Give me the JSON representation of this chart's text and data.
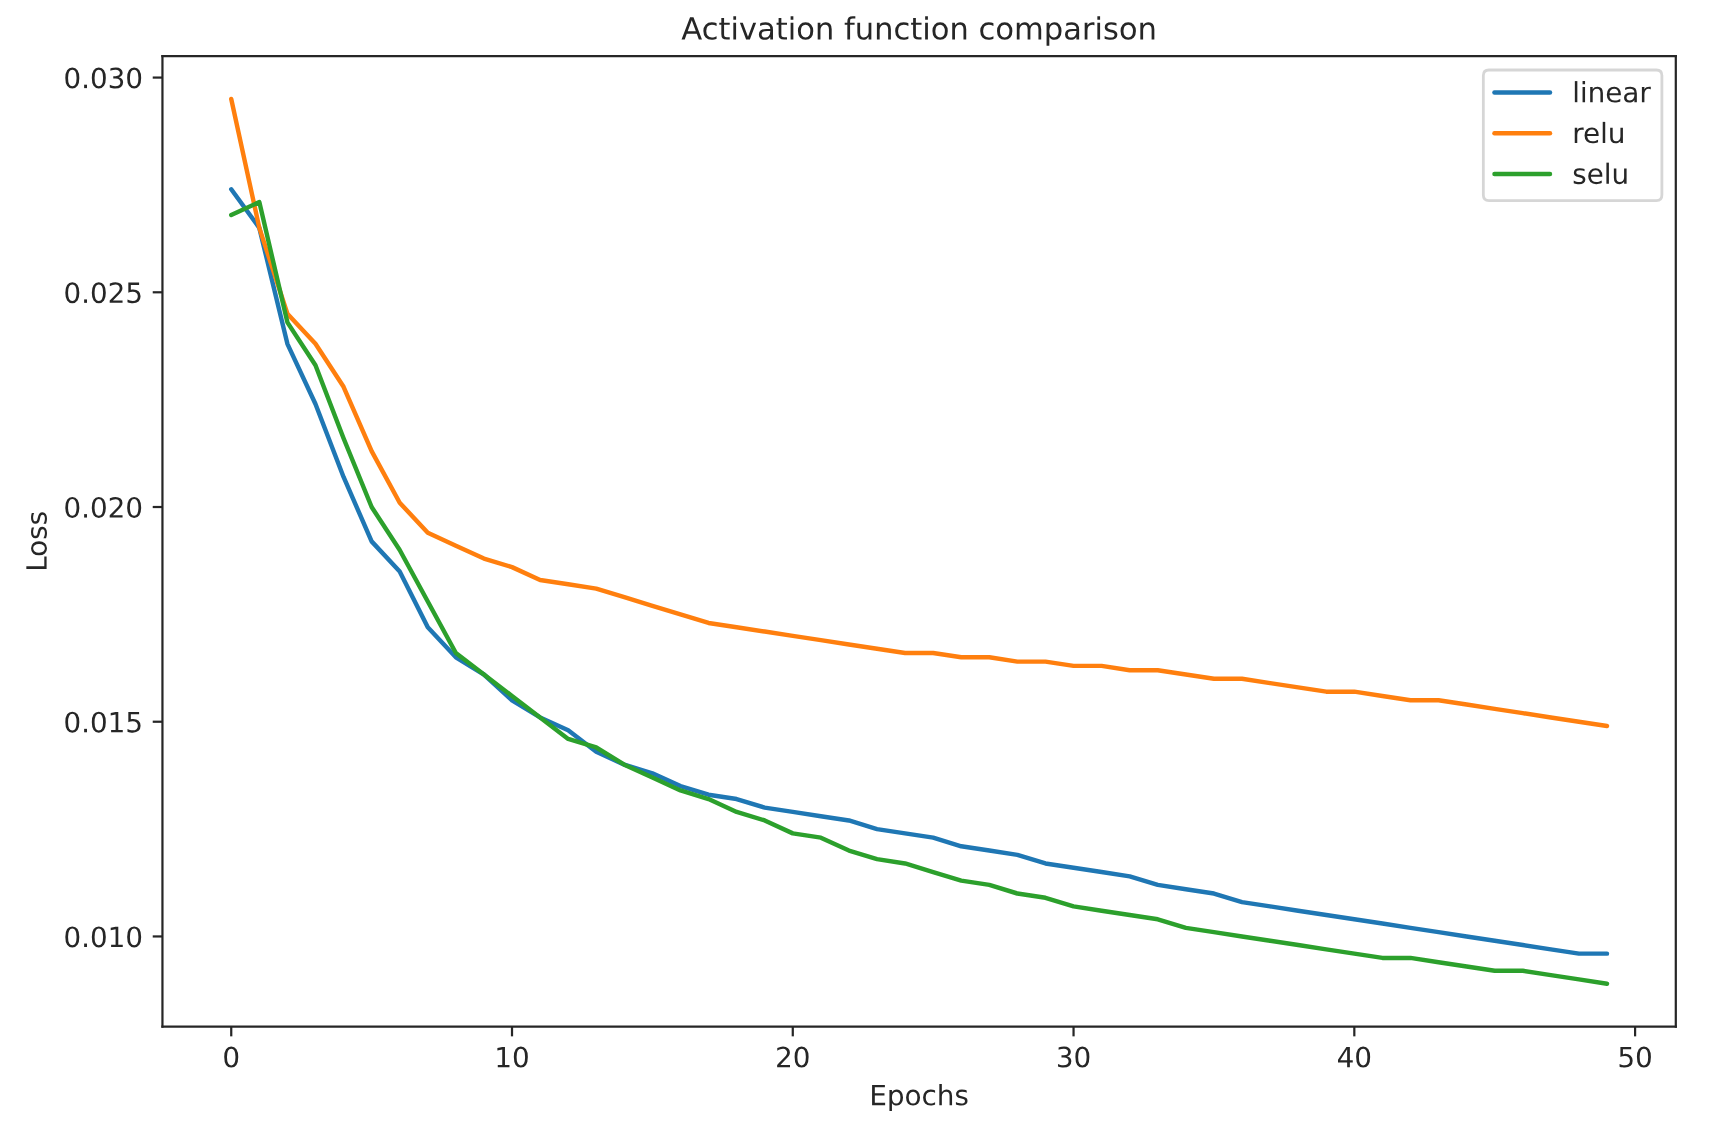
{
  "chart_data": {
    "type": "line",
    "title": "Activation function comparison",
    "xlabel": "Epochs",
    "ylabel": "Loss",
    "x": [
      0,
      1,
      2,
      3,
      4,
      5,
      6,
      7,
      8,
      9,
      10,
      11,
      12,
      13,
      14,
      15,
      16,
      17,
      18,
      19,
      20,
      21,
      22,
      23,
      24,
      25,
      26,
      27,
      28,
      29,
      30,
      31,
      32,
      33,
      34,
      35,
      36,
      37,
      38,
      39,
      40,
      41,
      42,
      43,
      44,
      45,
      46,
      47,
      48,
      49
    ],
    "series": [
      {
        "name": "linear",
        "color": "#1f77b4",
        "values": [
          0.0274,
          0.0265,
          0.0238,
          0.0224,
          0.0207,
          0.0192,
          0.0185,
          0.0172,
          0.0165,
          0.0161,
          0.0155,
          0.0151,
          0.0148,
          0.0143,
          0.014,
          0.0138,
          0.0135,
          0.0133,
          0.0132,
          0.013,
          0.0129,
          0.0128,
          0.0127,
          0.0125,
          0.0124,
          0.0123,
          0.0121,
          0.012,
          0.0119,
          0.0117,
          0.0116,
          0.0115,
          0.0114,
          0.0112,
          0.0111,
          0.011,
          0.0108,
          0.0107,
          0.0106,
          0.0105,
          0.0104,
          0.0103,
          0.0102,
          0.0101,
          0.01,
          0.0099,
          0.0098,
          0.0097,
          0.0096,
          0.0096
        ]
      },
      {
        "name": "relu",
        "color": "#ff7f0e",
        "values": [
          0.0295,
          0.0265,
          0.0245,
          0.0238,
          0.0228,
          0.0213,
          0.0201,
          0.0194,
          0.0191,
          0.0188,
          0.0186,
          0.0183,
          0.0182,
          0.0181,
          0.0179,
          0.0177,
          0.0175,
          0.0173,
          0.0172,
          0.0171,
          0.017,
          0.0169,
          0.0168,
          0.0167,
          0.0166,
          0.0166,
          0.0165,
          0.0165,
          0.0164,
          0.0164,
          0.0163,
          0.0163,
          0.0162,
          0.0162,
          0.0161,
          0.016,
          0.016,
          0.0159,
          0.0158,
          0.0157,
          0.0157,
          0.0156,
          0.0155,
          0.0155,
          0.0154,
          0.0153,
          0.0152,
          0.0151,
          0.015,
          0.0149
        ]
      },
      {
        "name": "selu",
        "color": "#2ca02c",
        "values": [
          0.0268,
          0.0271,
          0.0243,
          0.0233,
          0.0216,
          0.02,
          0.019,
          0.0178,
          0.0166,
          0.0161,
          0.0156,
          0.0151,
          0.0146,
          0.0144,
          0.014,
          0.0137,
          0.0134,
          0.0132,
          0.0129,
          0.0127,
          0.0124,
          0.0123,
          0.012,
          0.0118,
          0.0117,
          0.0115,
          0.0113,
          0.0112,
          0.011,
          0.0109,
          0.0107,
          0.0106,
          0.0105,
          0.0104,
          0.0102,
          0.0101,
          0.01,
          0.0099,
          0.0098,
          0.0097,
          0.0096,
          0.0095,
          0.0095,
          0.0094,
          0.0093,
          0.0092,
          0.0092,
          0.0091,
          0.009,
          0.0089
        ]
      }
    ],
    "xlim": [
      -2.45,
      51.45
    ],
    "xticks": [
      0,
      10,
      20,
      30,
      40,
      50
    ],
    "ylim": [
      0.0079,
      0.0305
    ],
    "yticks": [
      {
        "value": 0.01,
        "label": "0.010"
      },
      {
        "value": 0.015,
        "label": "0.015"
      },
      {
        "value": 0.02,
        "label": "0.020"
      },
      {
        "value": 0.025,
        "label": "0.025"
      },
      {
        "value": 0.03,
        "label": "0.030"
      }
    ],
    "legend": "top right",
    "grid": false,
    "marker": "none",
    "line_style": "solid"
  }
}
